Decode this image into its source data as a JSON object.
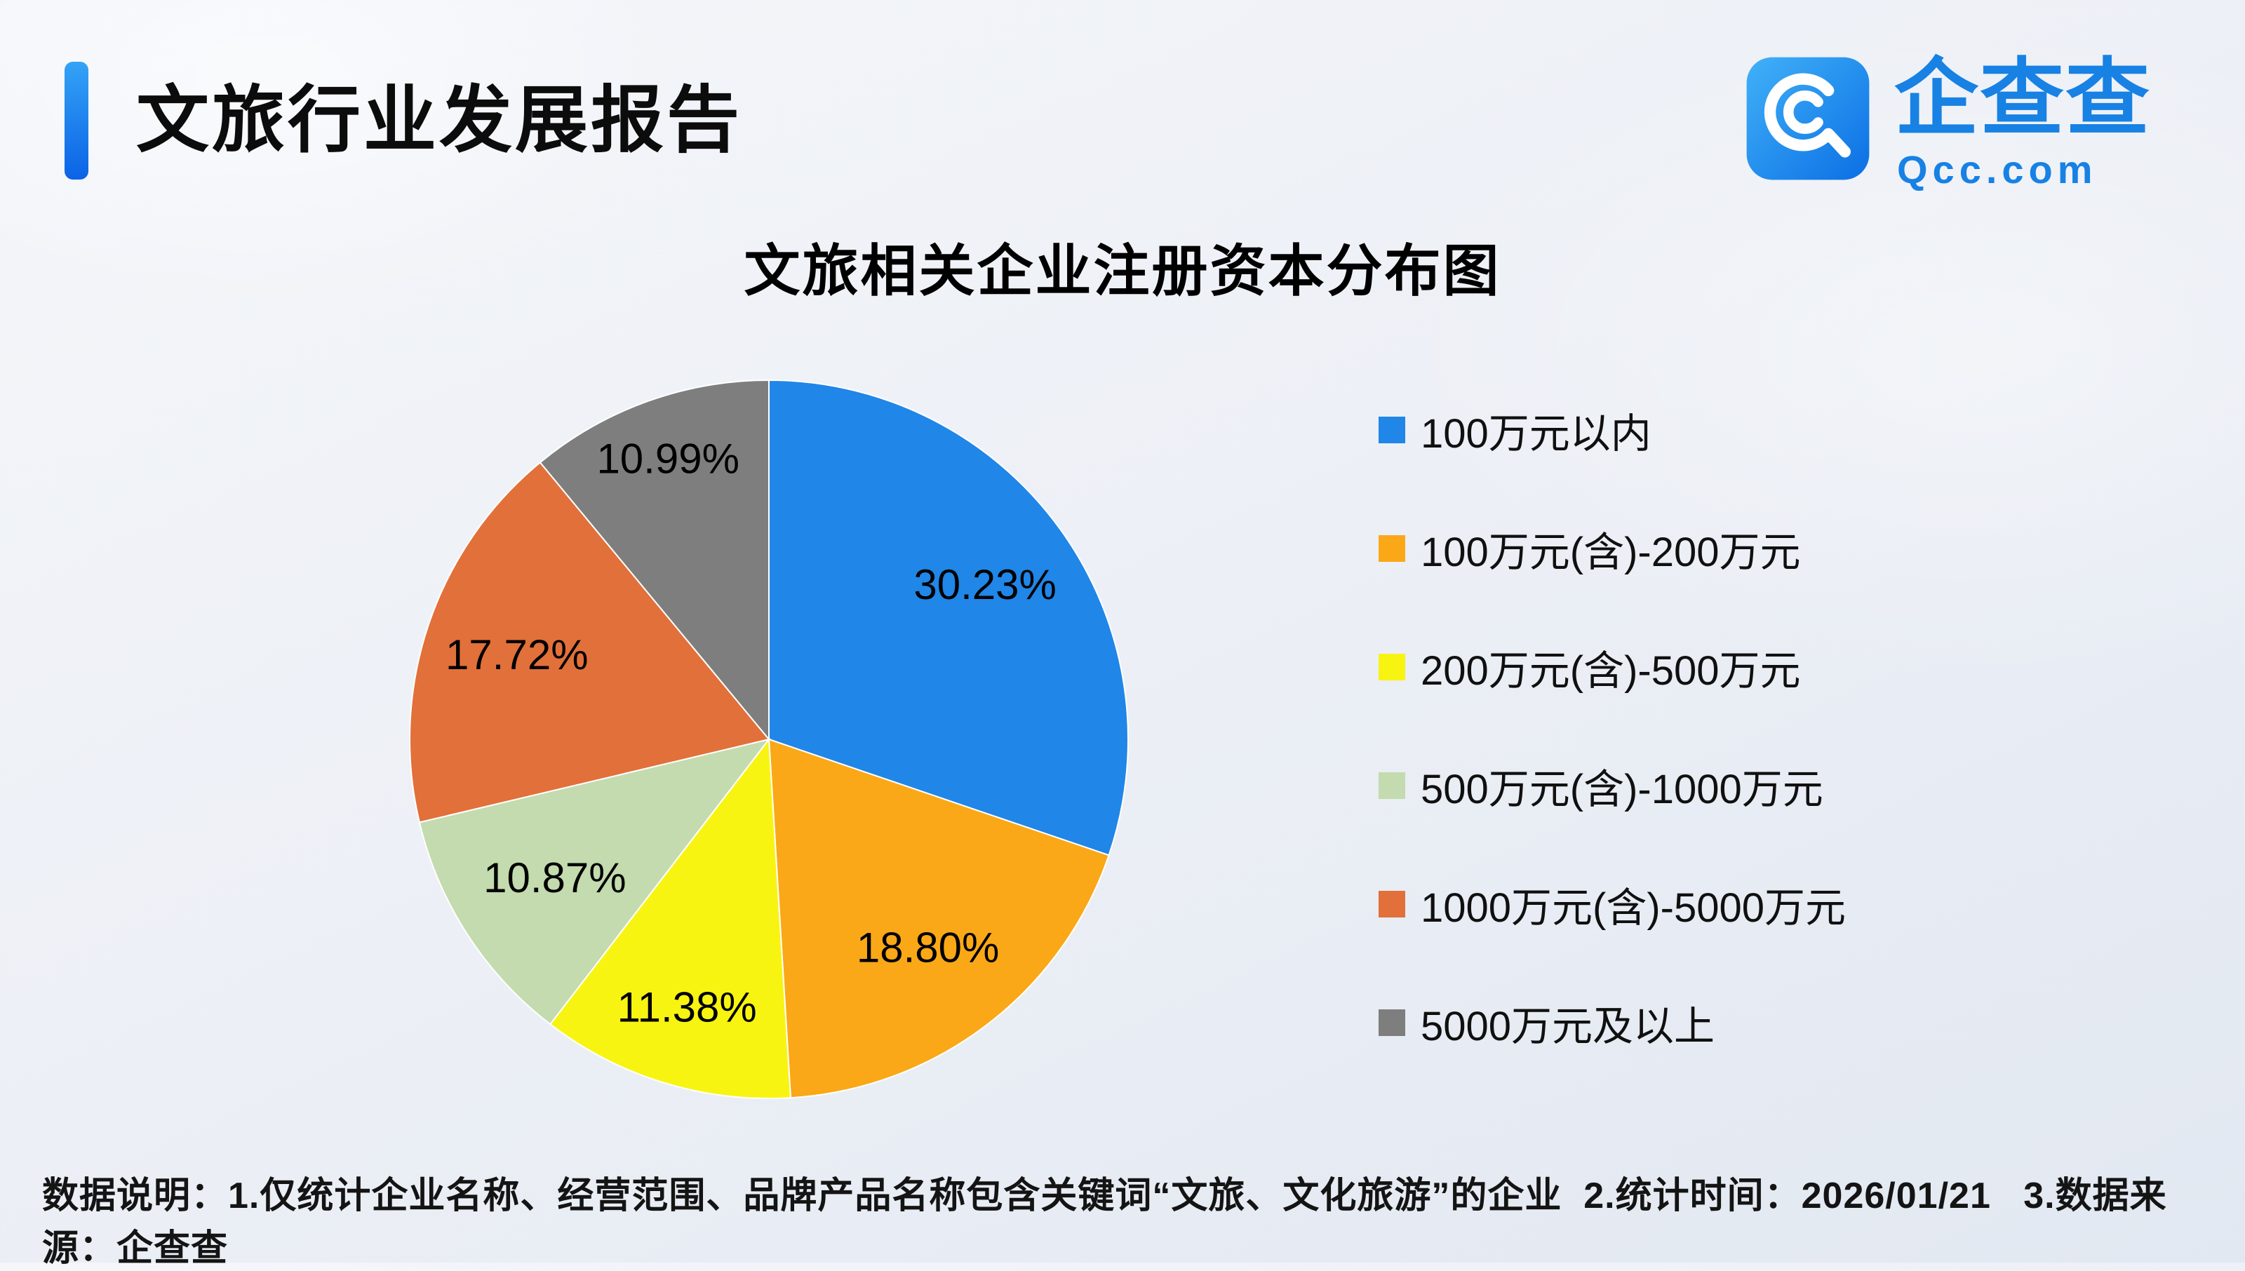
{
  "page": {
    "report_title": "文旅行业发展报告",
    "logo": {
      "brand_name": "企查查",
      "brand_domain": "Qcc.com",
      "brand_color": "#1781E4",
      "icon": "qcc-magnifier-icon"
    },
    "footer_note": "数据说明：1.仅统计企业名称、经营范围、品牌产品名称包含关键词“文旅、文化旅游”的企业  2.统计时间：2026/01/21   3.数据来源：企查查"
  },
  "chart_data": {
    "type": "pie",
    "title": "文旅相关企业注册资本分布图",
    "start_angle_deg": -90,
    "direction": "clockwise",
    "legend_position": "right",
    "label_format": "percent",
    "slices": [
      {
        "label": "100万元以内",
        "value": 30.23,
        "display": "30.23%",
        "color": "#2086E8"
      },
      {
        "label": "100万元(含)-200万元",
        "value": 18.8,
        "display": "18.80%",
        "color": "#FAA817"
      },
      {
        "label": "200万元(含)-500万元",
        "value": 11.38,
        "display": "11.38%",
        "color": "#F8F411"
      },
      {
        "label": "500万元(含)-1000万元",
        "value": 10.87,
        "display": "10.87%",
        "color": "#C3DBAE"
      },
      {
        "label": "1000万元(含)-5000万元",
        "value": 17.72,
        "display": "17.72%",
        "color": "#E2703A"
      },
      {
        "label": "5000万元及以上",
        "value": 10.99,
        "display": "10.99%",
        "color": "#7E7E7E"
      }
    ]
  }
}
